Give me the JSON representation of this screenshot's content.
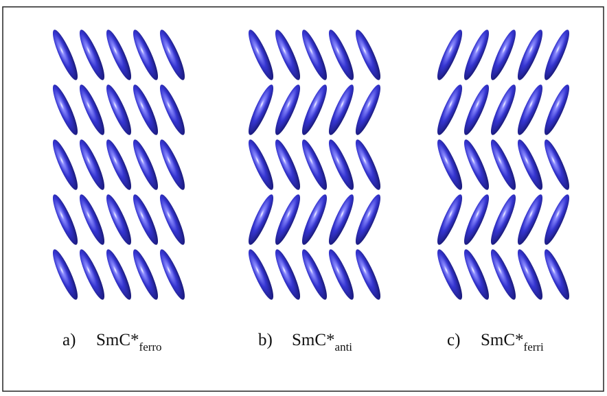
{
  "panels": [
    {
      "letter": "a)",
      "name": "SmC*",
      "sub": "ferro"
    },
    {
      "letter": "b)",
      "name": "SmC*",
      "sub": "anti"
    },
    {
      "letter": "c)",
      "name": "SmC*",
      "sub": "ferri"
    }
  ]
}
